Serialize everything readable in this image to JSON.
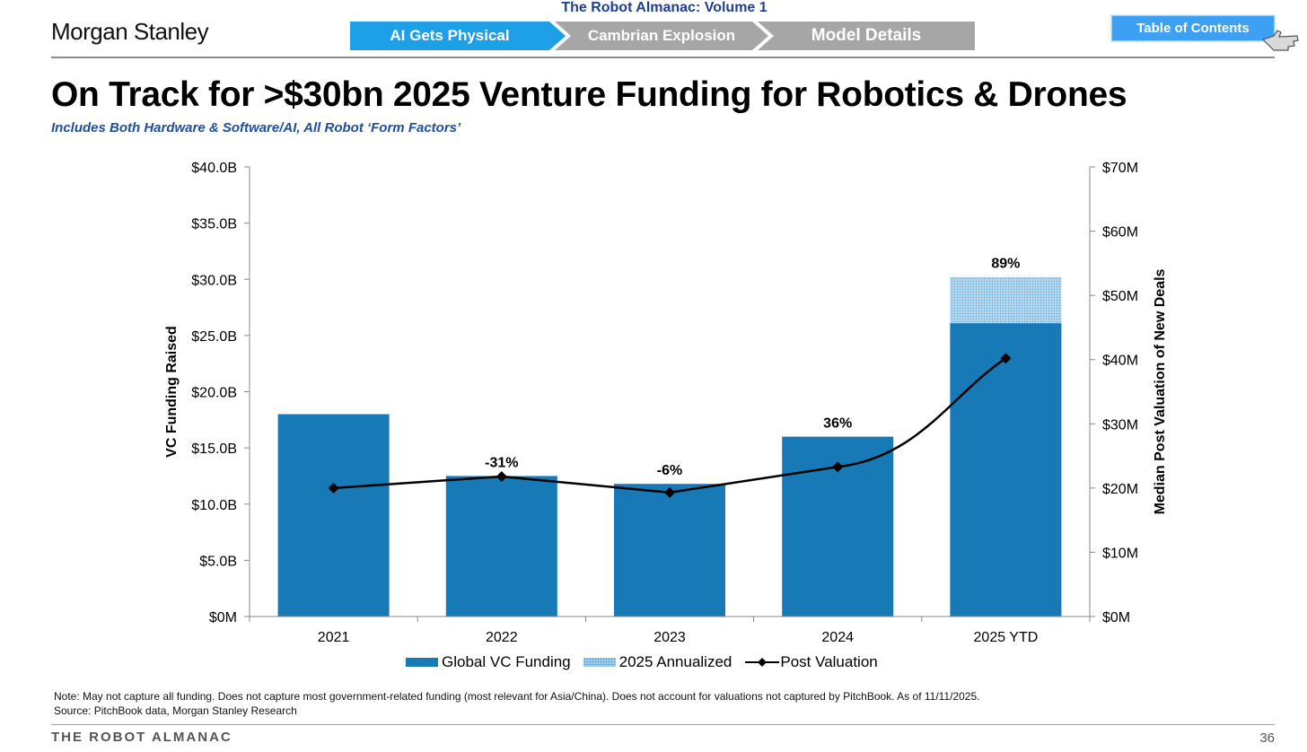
{
  "header": {
    "logo": "Morgan Stanley",
    "volume_title": "The Robot Almanac: Volume 1",
    "nav_steps": [
      "AI Gets Physical",
      "Cambrian Explosion",
      "Model Details"
    ],
    "toc_label": "Table of Contents"
  },
  "title": "On Track for >$30bn 2025 Venture Funding for Robotics & Drones",
  "subtitle": "Includes Both Hardware & Software/AI, All Robot ‘Form Factors’",
  "chart_data": {
    "type": "bar",
    "categories": [
      "2021",
      "2022",
      "2023",
      "2024",
      "2025 YTD"
    ],
    "ylabel": "VC Funding Raised",
    "y2label": "Median Post Valuation of New Deals",
    "ylim": [
      0,
      40
    ],
    "y2lim": [
      0,
      70
    ],
    "yticks": [
      "$0M",
      "$5.0B",
      "$10.0B",
      "$15.0B",
      "$20.0B",
      "$25.0B",
      "$30.0B",
      "$35.0B",
      "$40.0B"
    ],
    "y2ticks": [
      "$0M",
      "$10M",
      "$20M",
      "$30M",
      "$40M",
      "$50M",
      "$60M",
      "$70M"
    ],
    "series": [
      {
        "name": "Global VC Funding",
        "values": [
          18.0,
          12.5,
          11.8,
          16.0,
          26.1
        ],
        "color": "#1779b5"
      },
      {
        "name": "2025 Annualized",
        "values": [
          0,
          0,
          0,
          0,
          4.1
        ],
        "color": "#b6d9f0"
      },
      {
        "name": "Post Valuation",
        "values": [
          20.0,
          21.8,
          19.3,
          23.3,
          40.2
        ],
        "axis": "right",
        "color": "#000000"
      }
    ],
    "data_labels": [
      "",
      "-31%",
      "-6%",
      "36%",
      "89%"
    ],
    "grid": false,
    "legend_position": "bottom"
  },
  "note": "Note: May not capture all funding. Does not capture most government-related funding (most relevant for Asia/China). Does not account for valuations not captured by PitchBook. As of 11/11/2025.",
  "source": "Source: PitchBook data, Morgan Stanley Research",
  "footer": {
    "left": "THE ROBOT ALMANAC",
    "page_number": "36"
  }
}
